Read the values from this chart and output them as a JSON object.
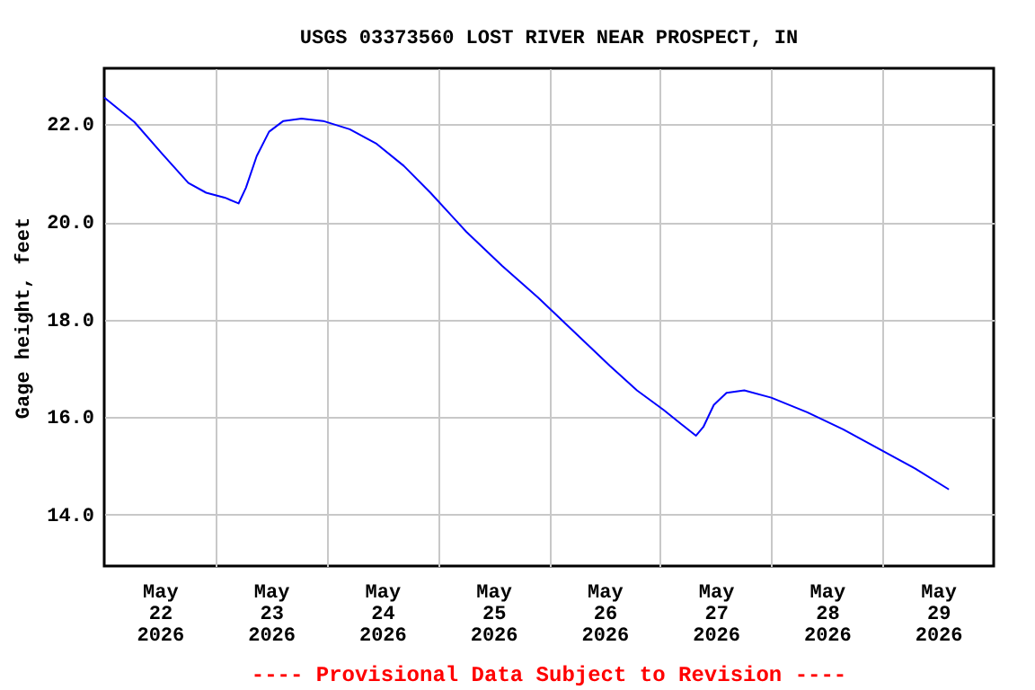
{
  "chart_data": {
    "type": "line",
    "title": "USGS 03373560 LOST RIVER NEAR PROSPECT, IN",
    "ylabel": "Gage height, feet",
    "annotations": [
      "---- Provisional Data Subject to Revision ----"
    ],
    "x": [
      "2026-05-22T00:00",
      "2026-05-22T06:30",
      "2026-05-22T12:30",
      "2026-05-22T18:10",
      "2026-05-22T22:00",
      "2026-05-23T02:00",
      "2026-05-23T05:00",
      "2026-05-23T06:35",
      "2026-05-23T08:55",
      "2026-05-23T11:35",
      "2026-05-23T14:40",
      "2026-05-23T18:35",
      "2026-05-23T23:15",
      "2026-05-24T05:00",
      "2026-05-24T10:50",
      "2026-05-24T16:40",
      "2026-05-24T22:25",
      "2026-05-25T06:10",
      "2026-05-25T13:55",
      "2026-05-25T21:40",
      "2026-05-26T05:25",
      "2026-05-26T13:10",
      "2026-05-26T19:00",
      "2026-05-27T00:45",
      "2026-05-27T04:40",
      "2026-05-27T07:45",
      "2026-05-27T09:20",
      "2026-05-27T11:35",
      "2026-05-27T14:20",
      "2026-05-27T18:10",
      "2026-05-28T00:00",
      "2026-05-28T07:45",
      "2026-05-28T15:30",
      "2026-05-28T23:15",
      "2026-05-29T07:00",
      "2026-05-29T14:20"
    ],
    "series": [
      {
        "color": "#0000ff",
        "values": [
          22.55,
          22.05,
          21.4,
          20.8,
          20.6,
          20.5,
          20.38,
          20.7,
          21.35,
          21.85,
          22.07,
          22.12,
          22.07,
          21.9,
          21.6,
          21.15,
          20.6,
          19.8,
          19.1,
          18.45,
          17.75,
          17.05,
          16.55,
          16.15,
          15.85,
          15.62,
          15.8,
          16.25,
          16.5,
          16.55,
          16.4,
          16.1,
          15.75,
          15.35,
          14.95,
          14.52
        ]
      }
    ],
    "xlim": [
      "2026-05-22T00:00",
      "2026-05-30T00:00"
    ],
    "xticks": [
      {
        "value": "2026-05-22T12:00",
        "label": "May\n22\n2026"
      },
      {
        "value": "2026-05-23T12:00",
        "label": "May\n23\n2026"
      },
      {
        "value": "2026-05-24T12:00",
        "label": "May\n24\n2026"
      },
      {
        "value": "2026-05-25T12:00",
        "label": "May\n25\n2026"
      },
      {
        "value": "2026-05-26T12:00",
        "label": "May\n26\n2026"
      },
      {
        "value": "2026-05-27T12:00",
        "label": "May\n27\n2026"
      },
      {
        "value": "2026-05-28T12:00",
        "label": "May\n28\n2026"
      },
      {
        "value": "2026-05-29T12:00",
        "label": "May\n29\n2026"
      },
      {
        "value": "2026-05-23T00:00",
        "label": null
      },
      {
        "value": "2026-05-24T00:00",
        "label": null
      },
      {
        "value": "2026-05-25T00:00",
        "label": null
      },
      {
        "value": "2026-05-26T00:00",
        "label": null
      },
      {
        "value": "2026-05-27T00:00",
        "label": null
      },
      {
        "value": "2026-05-28T00:00",
        "label": null
      },
      {
        "value": "2026-05-29T00:00",
        "label": null
      }
    ],
    "ylim": [
      12.95,
      23.15
    ],
    "yticks": [
      {
        "value": 14,
        "label": "14.0"
      },
      {
        "value": 16,
        "label": "16.0"
      },
      {
        "value": 18,
        "label": "18.0"
      },
      {
        "value": 20,
        "label": "20.0"
      },
      {
        "value": 22,
        "label": "22.0"
      }
    ],
    "grid": true,
    "legend": false,
    "marker": "none",
    "line_style": "solid"
  }
}
